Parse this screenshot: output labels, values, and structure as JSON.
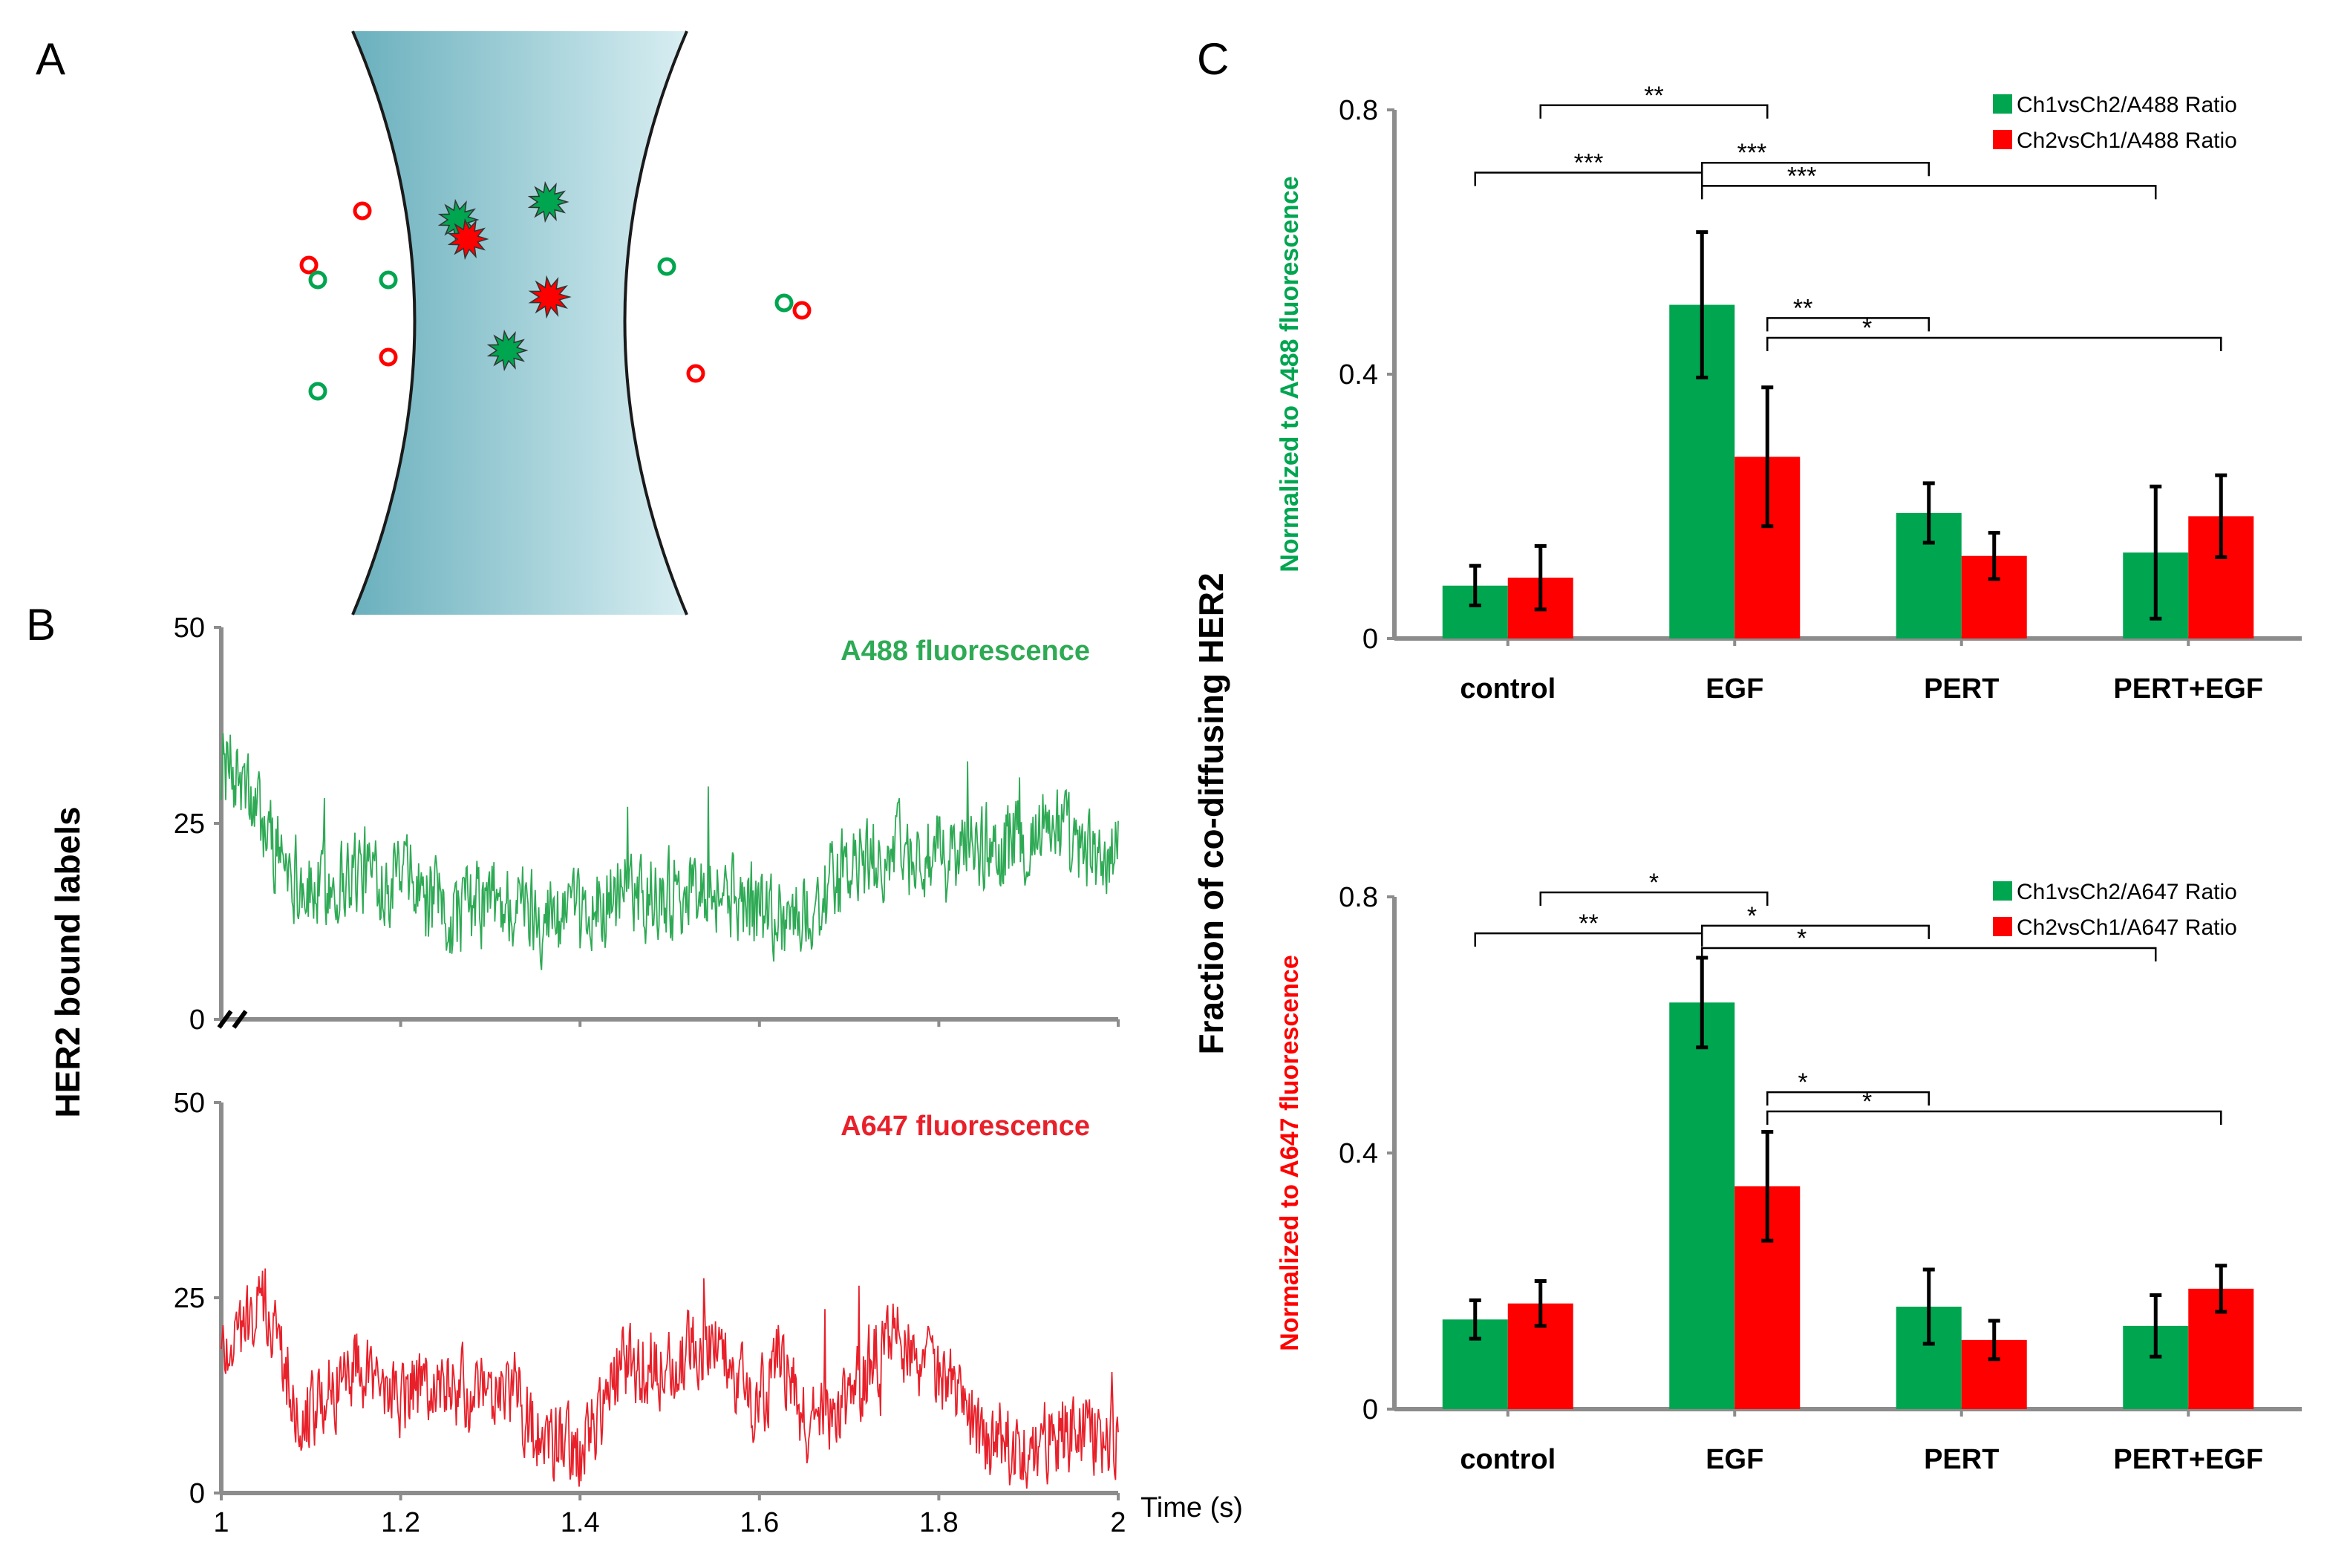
{
  "panels": {
    "a": "A",
    "b": "B",
    "c": "C"
  },
  "colors": {
    "green": "#00a550",
    "red": "#ff0000",
    "trace_green": "#2eaa55",
    "trace_red": "#e8202a",
    "axis": "#8c8c8c",
    "beam_dark": "#6ab0bd",
    "beam_light": "#d8eef2"
  },
  "schematic": {
    "icons": [
      "green-bound-label-icon",
      "red-bound-label-icon",
      "green-free-label-icon",
      "red-free-label-icon"
    ]
  },
  "chart_data": [
    {
      "id": "trace-a488",
      "type": "line",
      "title": "A488 fluorescence",
      "ylabel": "HER2 bound labels",
      "xlim": [
        1,
        2
      ],
      "ylim": [
        0,
        50
      ],
      "yticks": [
        "0",
        "25",
        "50"
      ],
      "xticks": [],
      "profile_x": [
        1.0,
        1.02,
        1.05,
        1.1,
        1.15,
        1.2,
        1.25,
        1.3,
        1.35,
        1.4,
        1.45,
        1.5,
        1.55,
        1.6,
        1.65,
        1.7,
        1.75,
        1.8,
        1.85,
        1.9,
        1.93,
        1.95,
        2.0
      ],
      "profile_y": [
        33,
        30,
        24,
        16,
        19,
        18,
        13,
        15,
        14,
        12,
        17,
        16,
        17,
        14,
        13,
        19,
        21,
        20,
        22,
        23,
        26,
        21,
        20
      ],
      "noise_amplitude": 5
    },
    {
      "id": "trace-a647",
      "type": "line",
      "title": "A647 fluorescence",
      "ylabel": "HER2 bound labels",
      "xlabel": "Time (s)",
      "xlim": [
        1,
        2
      ],
      "ylim": [
        0,
        50
      ],
      "yticks": [
        "0",
        "25",
        "50"
      ],
      "xticks": [
        "1",
        "1.2",
        "1.4",
        "1.6",
        "1.8",
        "2"
      ],
      "profile_x": [
        1.0,
        1.02,
        1.05,
        1.08,
        1.1,
        1.15,
        1.2,
        1.25,
        1.3,
        1.32,
        1.35,
        1.4,
        1.45,
        1.5,
        1.55,
        1.6,
        1.62,
        1.65,
        1.7,
        1.75,
        1.8,
        1.85,
        1.9,
        1.95,
        2.0
      ],
      "profile_y": [
        18,
        21,
        24,
        13,
        10,
        17,
        12,
        14,
        11,
        15,
        7,
        5,
        17,
        16,
        20,
        11,
        18,
        9,
        12,
        21,
        15,
        7,
        6,
        8,
        7
      ],
      "noise_amplitude": 4.5
    },
    {
      "id": "bars-a488",
      "type": "bar",
      "ylabel": "Normalized to A488 fluorescence",
      "ylim": [
        0,
        0.8
      ],
      "yticks": [
        "0",
        "0.4",
        "0.8"
      ],
      "categories": [
        "control",
        "EGF",
        "PERT",
        "PERT+EGF"
      ],
      "series": [
        {
          "name": "Ch1vsCh2/A488 Ratio",
          "color": "#00a550",
          "values": [
            0.08,
            0.505,
            0.19,
            0.13
          ],
          "errors": [
            0.03,
            0.11,
            0.045,
            0.1
          ]
        },
        {
          "name": "Ch2vsCh1/A488 Ratio",
          "color": "#ff0000",
          "values": [
            0.092,
            0.275,
            0.125,
            0.185
          ],
          "errors": [
            0.048,
            0.105,
            0.035,
            0.062
          ]
        }
      ],
      "significance": [
        {
          "from": "control",
          "to": "EGF",
          "level": 0.807,
          "label": "**"
        },
        {
          "from": "control",
          "to": "EGF",
          "level": 0.705,
          "label": "***"
        },
        {
          "from": "EGF",
          "to": "PERT",
          "level": 0.72,
          "label": "***"
        },
        {
          "from": "EGF",
          "to": "PERT+EGF",
          "level": 0.685,
          "label": "***"
        },
        {
          "from": "EGF",
          "to": "PERT",
          "level": 0.485,
          "label": "**"
        },
        {
          "from": "EGF",
          "to": "PERT+EGF",
          "level": 0.455,
          "label": "*"
        }
      ]
    },
    {
      "id": "bars-a647",
      "type": "bar",
      "ylabel": "Normalized to A647 fluorescence",
      "ylim": [
        0,
        0.8
      ],
      "yticks": [
        "0",
        "0.4",
        "0.8"
      ],
      "categories": [
        "control",
        "EGF",
        "PERT",
        "PERT+EGF"
      ],
      "series": [
        {
          "name": "Ch1vsCh2/A647 Ratio",
          "color": "#00a550",
          "values": [
            0.14,
            0.635,
            0.16,
            0.13
          ],
          "errors": [
            0.03,
            0.07,
            0.058,
            0.048
          ]
        },
        {
          "name": "Ch2vsCh1/A647 Ratio",
          "color": "#ff0000",
          "values": [
            0.165,
            0.348,
            0.108,
            0.188
          ],
          "errors": [
            0.035,
            0.085,
            0.03,
            0.036
          ]
        }
      ],
      "significance": [
        {
          "from": "control",
          "to": "EGF",
          "level": 0.807,
          "label": "*"
        },
        {
          "from": "control",
          "to": "EGF",
          "level": 0.743,
          "label": "**"
        },
        {
          "from": "EGF",
          "to": "PERT",
          "level": 0.755,
          "label": "*"
        },
        {
          "from": "EGF",
          "to": "PERT+EGF",
          "level": 0.72,
          "label": "*"
        },
        {
          "from": "EGF",
          "to": "PERT",
          "level": 0.495,
          "label": "*"
        },
        {
          "from": "EGF",
          "to": "PERT+EGF",
          "level": 0.465,
          "label": "*"
        }
      ]
    }
  ],
  "shared_ylabel_c": "Fraction of co-diffusing HER2"
}
